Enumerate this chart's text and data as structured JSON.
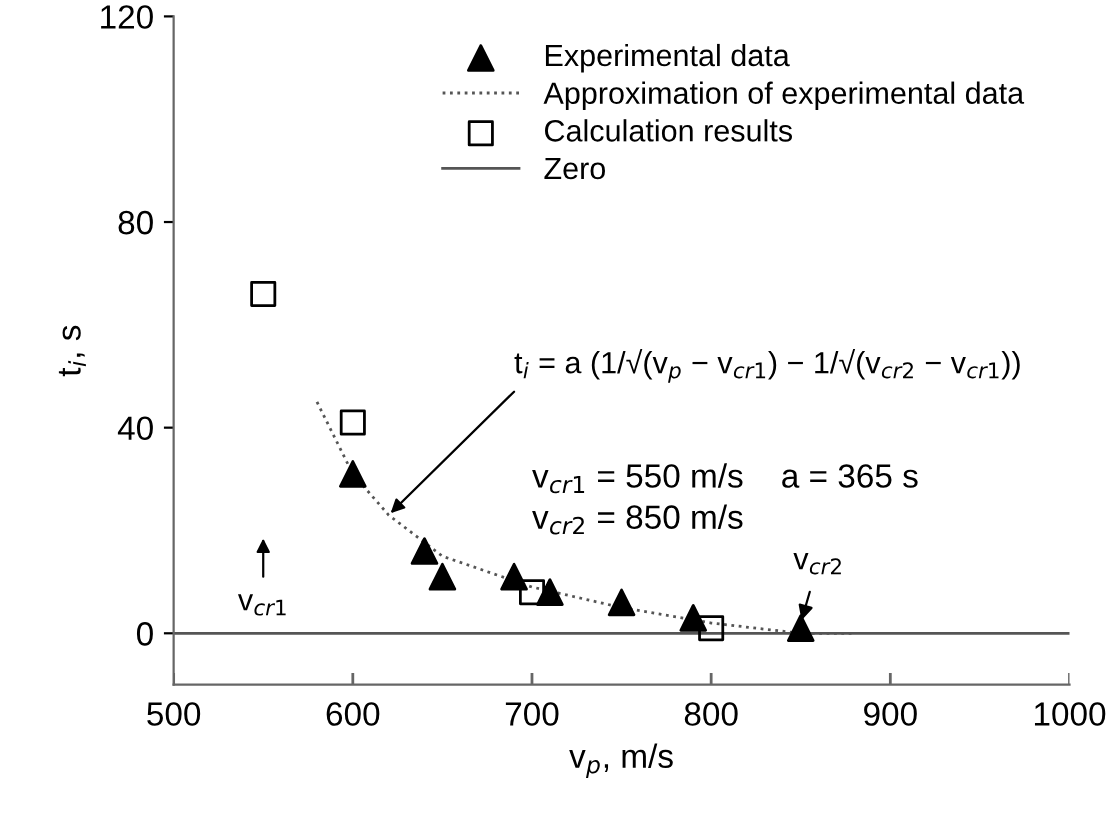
{
  "chart_data": {
    "type": "scatter",
    "xlabel": "v$_{p}$, m/s",
    "ylabel": "t$_{i}$, s",
    "xlim": [
      500,
      1000
    ],
    "xticks": [
      500,
      600,
      700,
      800,
      900,
      1000
    ],
    "ylim": [
      -10,
      120
    ],
    "yticks": [
      0,
      40,
      80,
      120
    ],
    "grid": false,
    "legend": "top right",
    "series": [
      {
        "name": "Experimental data",
        "marker": "triangle",
        "color": "#000000",
        "x": [
          600,
          640,
          650,
          690,
          710,
          750,
          790,
          850
        ],
        "values": [
          31,
          16,
          11,
          11,
          8,
          6,
          3,
          1
        ]
      },
      {
        "name": "Approximation of experimental data",
        "type": "line",
        "line_style": "dotted",
        "marker": "none",
        "color": "#555555",
        "x": [
          580,
          600,
          620,
          650,
          700,
          750,
          800,
          850,
          880
        ],
        "values": [
          45,
          31,
          23,
          15,
          9,
          5,
          2,
          0,
          0
        ]
      },
      {
        "name": "Calculation results",
        "type": "scatter",
        "marker": "square",
        "color": "#000000",
        "x": [
          550,
          600,
          700,
          800
        ],
        "values": [
          66,
          41,
          8,
          1
        ]
      },
      {
        "name": "Zero",
        "type": "line",
        "line_style": "solid",
        "marker": "none",
        "color": "#555555",
        "x": [
          500,
          1000
        ],
        "values": [
          0,
          0
        ]
      }
    ],
    "annotations": [
      "t$_{i}$ = a (1/√(v$_{p}$ − v$_{cr1}$) − 1/√(v$_{cr2}$ − v$_{cr1}$))",
      "v$_{cr1}$ = 550 m/s    a = 365 s",
      "v$_{cr2}$ = 850 m/s",
      "v$_{cr1}$",
      {
        "text": "v$_{cr2}$",
        "x": 850,
        "y": 2
      }
    ]
  }
}
